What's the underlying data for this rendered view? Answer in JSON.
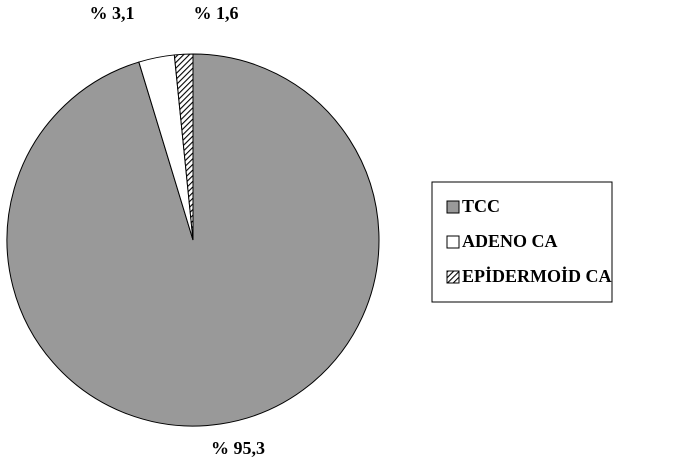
{
  "chart_data": {
    "type": "pie",
    "categories": [
      "TCC",
      "ADENO CA",
      "EPİDERMOİD CA"
    ],
    "values": [
      95.3,
      3.1,
      1.6
    ],
    "value_labels": [
      "% 95,3",
      "% 3,1",
      "% 1,6"
    ],
    "colors": [
      "#999999",
      "#ffffff",
      "#000000"
    ],
    "fills": [
      "solid",
      "solid",
      "hatched"
    ],
    "legend": "right"
  }
}
